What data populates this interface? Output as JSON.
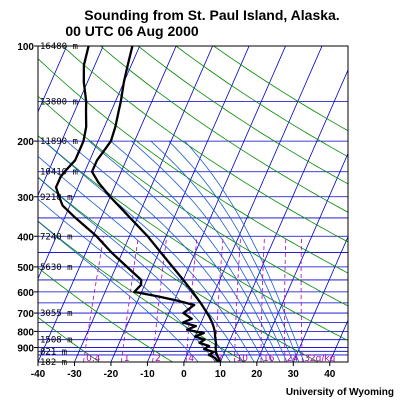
{
  "title_line1": "Sounding from St. Paul Island, Alaska.",
  "title_line2": "00 UTC 06 Aug 2000",
  "credit": "University of Wyoming",
  "chart_data": {
    "type": "line",
    "chart_kind": "skew-T log-P diagram",
    "x_axis": {
      "quantity": "temperature (°C, skewed)",
      "range": [
        -40,
        45
      ],
      "ticks": [
        -40,
        -30,
        -20,
        -10,
        0,
        10,
        20,
        30,
        40
      ],
      "tick_labels": [
        "-40",
        "-30",
        "-20",
        "-10",
        "0",
        "10",
        "20",
        "30",
        "40"
      ]
    },
    "y_axis": {
      "quantity": "pressure (hPa)",
      "scale": "log",
      "range": [
        1000,
        100
      ],
      "ticks": [
        100,
        200,
        300,
        400,
        500,
        600,
        700,
        800,
        900
      ],
      "tick_labels": [
        "100",
        "200",
        "300",
        "400",
        "500",
        "600",
        "700",
        "800",
        "900"
      ]
    },
    "height_labels": [
      {
        "p": 100,
        "text": "16480 m"
      },
      {
        "p": 150,
        "text": "13800 m"
      },
      {
        "p": 200,
        "text": "11890 m"
      },
      {
        "p": 250,
        "text": "10410 m"
      },
      {
        "p": 300,
        "text": "9210 m"
      },
      {
        "p": 400,
        "text": "7240 m"
      },
      {
        "p": 500,
        "text": "5630 m"
      },
      {
        "p": 700,
        "text": "3055 m"
      },
      {
        "p": 850,
        "text": "1508 m"
      },
      {
        "p": 925,
        "text": "821 m"
      },
      {
        "p": 1000,
        "text": "182 m"
      }
    ],
    "mixing_ratio_labels": [
      "0.4",
      "1",
      "2",
      "4",
      "7",
      "10",
      "16",
      "24",
      "32g/kg"
    ],
    "mixing_ratio_values": [
      0.4,
      1,
      2,
      4,
      7,
      10,
      16,
      24,
      32
    ],
    "dry_adiabats_K": [
      230,
      250,
      270,
      290,
      310,
      330,
      350,
      370,
      390,
      410,
      430,
      450,
      470
    ],
    "moist_adiabats_thetaE_K": [
      290,
      300,
      310,
      320,
      330,
      340,
      350,
      360,
      370,
      380,
      390,
      400
    ],
    "series": [
      {
        "kind": "temperature",
        "points": [
          {
            "p": 1000,
            "t": 10
          },
          {
            "p": 970,
            "t": 9
          },
          {
            "p": 950,
            "t": 8.2
          },
          {
            "p": 925,
            "t": 7.5
          },
          {
            "p": 900,
            "t": 7
          },
          {
            "p": 870,
            "t": 6.5
          },
          {
            "p": 850,
            "t": 6
          },
          {
            "p": 830,
            "t": 5.5
          },
          {
            "p": 800,
            "t": 4.8
          },
          {
            "p": 770,
            "t": 3.8
          },
          {
            "p": 750,
            "t": 3
          },
          {
            "p": 720,
            "t": 1.6
          },
          {
            "p": 700,
            "t": 0.5
          },
          {
            "p": 650,
            "t": -2.5
          },
          {
            "p": 600,
            "t": -6
          },
          {
            "p": 550,
            "t": -10
          },
          {
            "p": 500,
            "t": -14.5
          },
          {
            "p": 450,
            "t": -19.5
          },
          {
            "p": 400,
            "t": -25
          },
          {
            "p": 350,
            "t": -32
          },
          {
            "p": 300,
            "t": -40
          },
          {
            "p": 270,
            "t": -45
          },
          {
            "p": 250,
            "t": -48
          },
          {
            "p": 230,
            "t": -48
          },
          {
            "p": 210,
            "t": -47
          },
          {
            "p": 200,
            "t": -46.5
          },
          {
            "p": 180,
            "t": -47
          },
          {
            "p": 160,
            "t": -48
          },
          {
            "p": 150,
            "t": -48.5
          },
          {
            "p": 130,
            "t": -50
          },
          {
            "p": 115,
            "t": -51
          },
          {
            "p": 100,
            "t": -52
          }
        ]
      },
      {
        "kind": "dewpoint",
        "points": [
          {
            "p": 1000,
            "t": 9.5
          },
          {
            "p": 970,
            "t": 8
          },
          {
            "p": 950,
            "t": 6
          },
          {
            "p": 930,
            "t": 7
          },
          {
            "p": 910,
            "t": 4
          },
          {
            "p": 890,
            "t": 5
          },
          {
            "p": 870,
            "t": 2
          },
          {
            "p": 850,
            "t": 3
          },
          {
            "p": 830,
            "t": 0
          },
          {
            "p": 810,
            "t": 2
          },
          {
            "p": 790,
            "t": -3
          },
          {
            "p": 770,
            "t": -1
          },
          {
            "p": 750,
            "t": -5
          },
          {
            "p": 730,
            "t": -3
          },
          {
            "p": 700,
            "t": -6
          },
          {
            "p": 660,
            "t": -4
          },
          {
            "p": 640,
            "t": -9
          },
          {
            "p": 620,
            "t": -15
          },
          {
            "p": 600,
            "t": -22
          },
          {
            "p": 570,
            "t": -21
          },
          {
            "p": 550,
            "t": -21.5
          },
          {
            "p": 500,
            "t": -27
          },
          {
            "p": 450,
            "t": -33
          },
          {
            "p": 400,
            "t": -39
          },
          {
            "p": 350,
            "t": -47
          },
          {
            "p": 320,
            "t": -52
          },
          {
            "p": 300,
            "t": -54
          },
          {
            "p": 280,
            "t": -56
          },
          {
            "p": 260,
            "t": -56
          },
          {
            "p": 250,
            "t": -55.5
          },
          {
            "p": 230,
            "t": -54
          },
          {
            "p": 210,
            "t": -54
          },
          {
            "p": 200,
            "t": -54
          },
          {
            "p": 180,
            "t": -55
          },
          {
            "p": 160,
            "t": -57
          },
          {
            "p": 150,
            "t": -58
          },
          {
            "p": 130,
            "t": -61
          },
          {
            "p": 115,
            "t": -63
          },
          {
            "p": 100,
            "t": -64
          }
        ]
      }
    ],
    "colors": {
      "isobars_isotherms": "#0000c8",
      "dry_adiabats": "#008a00",
      "moist_adiabats": "#1f5fcf",
      "mixing_ratio": "#b400b4",
      "profiles": "#000000"
    },
    "grid": true
  }
}
